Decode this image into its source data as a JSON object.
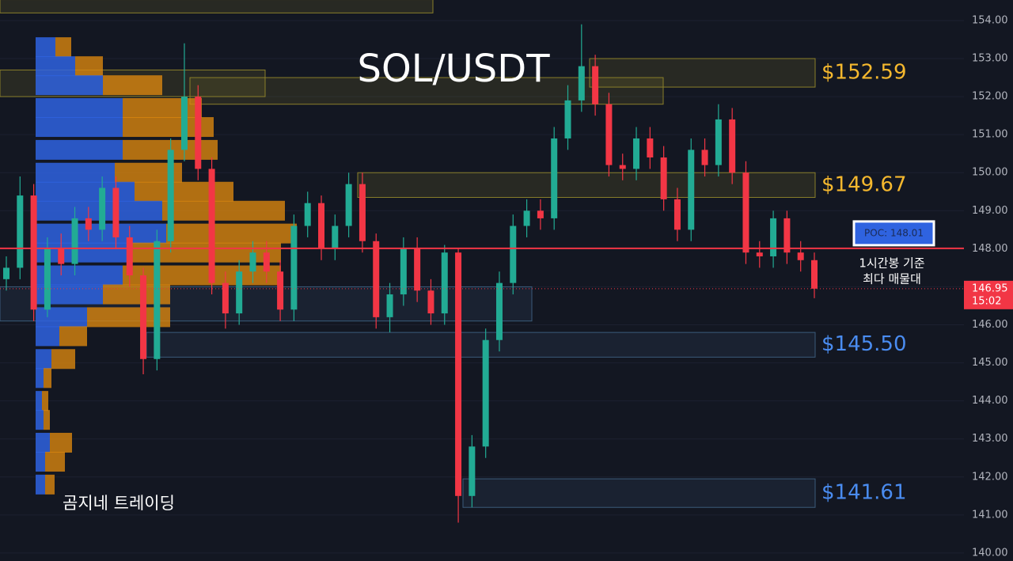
{
  "chart_data": {
    "type": "candlestick",
    "title": "SOL/USDT",
    "watermark": "곰지네 트레이딩",
    "ylim": [
      139.79,
      154.54
    ],
    "yticks": [
      {
        "value": 140,
        "label": "140.00"
      },
      {
        "value": 141,
        "label": "141.00"
      },
      {
        "value": 142,
        "label": "142.00"
      },
      {
        "value": 143,
        "label": "143.00"
      },
      {
        "value": 144,
        "label": "144.00"
      },
      {
        "value": 145,
        "label": "145.00"
      },
      {
        "value": 146,
        "label": "146.00"
      },
      {
        "value": 147,
        "label": "147.00"
      },
      {
        "value": 148,
        "label": "148.00"
      },
      {
        "value": 149,
        "label": "149.00"
      },
      {
        "value": 150,
        "label": "150.00"
      },
      {
        "value": 151,
        "label": "151.00"
      },
      {
        "value": 152,
        "label": "152.00"
      },
      {
        "value": 153,
        "label": "153.00"
      },
      {
        "value": 154,
        "label": "154.00"
      }
    ],
    "grid": true,
    "up_color": "#22ab94",
    "down_color": "#f23645",
    "open": [
      147.2,
      147.5,
      149.4,
      146.4,
      148.0,
      147.6,
      148.8,
      148.5,
      149.6,
      148.3,
      147.3,
      145.1,
      148.2,
      150.6,
      152.0,
      150.1,
      147.1,
      146.3,
      147.4,
      147.9,
      147.4,
      146.4,
      148.6,
      149.2,
      148.0,
      148.6,
      149.7,
      148.2,
      146.2,
      146.8,
      148.0,
      146.9,
      146.3,
      147.9,
      141.5,
      142.8,
      145.6,
      147.1,
      148.6,
      149.0,
      148.8,
      150.9,
      151.9,
      152.8,
      151.8,
      150.2,
      150.1,
      150.9,
      150.4,
      149.3,
      148.5,
      150.6,
      150.2,
      151.4,
      150.0,
      147.9,
      147.8,
      148.8,
      147.9,
      147.7
    ],
    "high": [
      147.8,
      149.9,
      149.7,
      148.3,
      148.4,
      149.1,
      149.1,
      149.9,
      149.9,
      148.6,
      147.5,
      148.5,
      150.9,
      153.4,
      152.3,
      150.4,
      147.4,
      147.7,
      148.2,
      148.2,
      147.7,
      148.9,
      149.5,
      149.4,
      148.9,
      150.0,
      150.0,
      148.4,
      147.1,
      148.3,
      148.3,
      147.2,
      148.1,
      148.0,
      143.1,
      145.9,
      147.4,
      148.9,
      149.3,
      149.3,
      151.2,
      152.3,
      153.9,
      153.1,
      152.1,
      150.5,
      151.2,
      151.2,
      150.7,
      149.6,
      150.9,
      150.9,
      151.8,
      151.7,
      150.3,
      148.2,
      149.0,
      149.0,
      148.2,
      147.9
    ],
    "low": [
      146.9,
      147.2,
      146.1,
      146.2,
      147.3,
      147.3,
      148.2,
      148.2,
      148.0,
      147.0,
      144.7,
      144.8,
      147.9,
      150.3,
      149.8,
      146.8,
      145.9,
      146.0,
      147.1,
      147.1,
      146.1,
      146.1,
      148.3,
      147.7,
      147.7,
      148.3,
      147.9,
      145.9,
      145.8,
      146.5,
      146.6,
      146.0,
      146.0,
      140.8,
      141.2,
      142.5,
      145.3,
      146.8,
      148.3,
      148.5,
      148.5,
      150.6,
      151.6,
      151.5,
      149.9,
      149.8,
      149.8,
      150.1,
      149.0,
      148.2,
      148.2,
      149.9,
      149.9,
      149.7,
      147.6,
      147.5,
      147.5,
      147.6,
      147.4,
      146.7
    ],
    "close": [
      147.5,
      149.4,
      146.4,
      148.0,
      147.6,
      148.8,
      148.5,
      149.6,
      148.3,
      147.3,
      145.1,
      148.2,
      150.6,
      152.0,
      150.1,
      147.1,
      146.3,
      147.4,
      147.9,
      147.4,
      146.4,
      148.6,
      149.2,
      148.0,
      148.6,
      149.7,
      148.2,
      146.2,
      146.8,
      148.0,
      146.9,
      146.3,
      147.9,
      141.5,
      142.8,
      145.6,
      147.1,
      148.6,
      149.0,
      148.8,
      150.9,
      151.9,
      152.8,
      151.8,
      150.2,
      150.1,
      150.9,
      150.4,
      149.3,
      148.5,
      150.6,
      150.2,
      151.4,
      150.0,
      147.9,
      147.8,
      148.8,
      147.9,
      147.7,
      146.95
    ],
    "volume_profile": {
      "prices": [
        153.3,
        152.8,
        152.3,
        151.7,
        151.2,
        150.6,
        150.0,
        149.5,
        149.0,
        148.4,
        147.9,
        147.3,
        146.8,
        146.2,
        145.7,
        145.1,
        144.6,
        144.0,
        143.5,
        142.9,
        142.4,
        141.8
      ],
      "buy": [
        25,
        50,
        85,
        110,
        110,
        110,
        100,
        125,
        160,
        165,
        115,
        110,
        85,
        65,
        30,
        20,
        10,
        8,
        10,
        18,
        12,
        12
      ],
      "sell": [
        20,
        35,
        75,
        100,
        115,
        120,
        85,
        125,
        155,
        165,
        195,
        200,
        85,
        105,
        35,
        30,
        10,
        8,
        8,
        28,
        25,
        12
      ],
      "buy_color": "#2f63e0",
      "sell_color": "#d9860f"
    },
    "zones": [
      {
        "low": 152.25,
        "high": 153.0,
        "color": "#8a7f2a",
        "label": "$152.59",
        "label_color": "#f5b82e"
      },
      {
        "low": 149.35,
        "high": 150.0,
        "color": "#8a7f2a",
        "label": "$149.67",
        "label_color": "#f5b82e"
      },
      {
        "low": 145.15,
        "high": 145.8,
        "color": "#3b5b7a",
        "label": "$145.50",
        "label_color": "#4a8cf0"
      },
      {
        "low": 141.2,
        "high": 141.95,
        "color": "#3b5b7a",
        "label": "$141.61",
        "label_color": "#4a8cf0"
      },
      {
        "low": 152.0,
        "high": 152.7,
        "color": "#8a7f2a"
      },
      {
        "low": 151.8,
        "high": 152.5,
        "color": "#8a7f2a"
      },
      {
        "low": 146.1,
        "high": 147.0,
        "color": "#3b5b7a"
      },
      {
        "low": 154.2,
        "high": 154.55,
        "color": "#8a7f2a"
      }
    ],
    "poc": {
      "value": 148.01,
      "label": "POC: 148.01",
      "note": [
        "1시간봉 기준",
        "최다 매물대"
      ]
    },
    "last_price": 146.95,
    "last_time": "15:02"
  }
}
